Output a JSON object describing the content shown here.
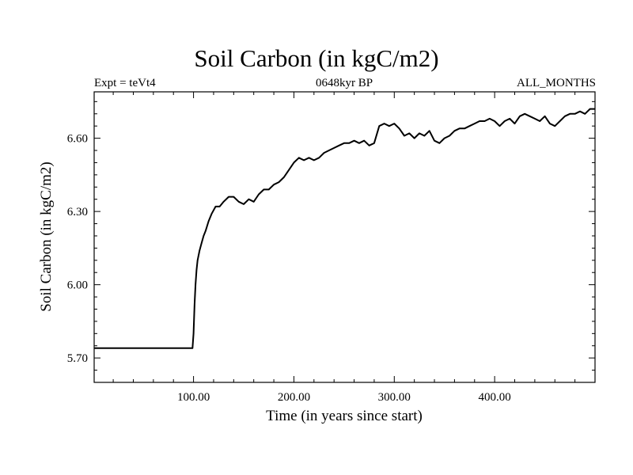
{
  "chart_data": {
    "type": "line",
    "title": "Soil Carbon (in kgC/m2)",
    "left_label": "Expt = teVt4",
    "center_label": "0648kyr BP",
    "right_label": "ALL_MONTHS",
    "xlabel": "Time (in years since start)",
    "ylabel": "Soil Carbon (in kgC/m2)",
    "xlim": [
      1,
      500
    ],
    "ylim": [
      5.6,
      6.79
    ],
    "x_ticks": [
      100,
      200,
      300,
      400
    ],
    "x_tick_labels": [
      "100.00",
      "200.00",
      "300.00",
      "400.00"
    ],
    "y_ticks": [
      5.7,
      6.0,
      6.3,
      6.6
    ],
    "y_tick_labels": [
      "5.70",
      "6.00",
      "6.30",
      "6.60"
    ],
    "grid": false,
    "series": [
      {
        "x": [
          1,
          99,
          100,
          101,
          102,
          103,
          104,
          106,
          108,
          110,
          112,
          115,
          118,
          122,
          126,
          130,
          135,
          140,
          145,
          150,
          155,
          160,
          165,
          170,
          175,
          180,
          185,
          190,
          195,
          200,
          205,
          210,
          215,
          220,
          225,
          230,
          235,
          240,
          245,
          250,
          255,
          260,
          265,
          270,
          275,
          280,
          285,
          290,
          295,
          300,
          305,
          310,
          315,
          320,
          325,
          330,
          335,
          340,
          345,
          350,
          355,
          360,
          365,
          370,
          375,
          380,
          385,
          390,
          395,
          400,
          405,
          410,
          415,
          420,
          425,
          430,
          435,
          440,
          445,
          450,
          455,
          460,
          465,
          470,
          475,
          480,
          485,
          490,
          495,
          500
        ],
        "y": [
          5.74,
          5.74,
          5.8,
          5.92,
          6.0,
          6.06,
          6.1,
          6.14,
          6.17,
          6.2,
          6.22,
          6.26,
          6.29,
          6.32,
          6.32,
          6.34,
          6.36,
          6.36,
          6.34,
          6.33,
          6.35,
          6.34,
          6.37,
          6.39,
          6.39,
          6.41,
          6.42,
          6.44,
          6.47,
          6.5,
          6.52,
          6.51,
          6.52,
          6.51,
          6.52,
          6.54,
          6.55,
          6.56,
          6.57,
          6.58,
          6.58,
          6.59,
          6.58,
          6.59,
          6.57,
          6.58,
          6.65,
          6.66,
          6.65,
          6.66,
          6.64,
          6.61,
          6.62,
          6.6,
          6.62,
          6.61,
          6.63,
          6.59,
          6.58,
          6.6,
          6.61,
          6.63,
          6.64,
          6.64,
          6.65,
          6.66,
          6.67,
          6.67,
          6.68,
          6.67,
          6.65,
          6.67,
          6.68,
          6.66,
          6.69,
          6.7,
          6.69,
          6.68,
          6.67,
          6.69,
          6.66,
          6.65,
          6.67,
          6.69,
          6.7,
          6.7,
          6.71,
          6.7,
          6.72,
          6.72
        ]
      }
    ]
  }
}
